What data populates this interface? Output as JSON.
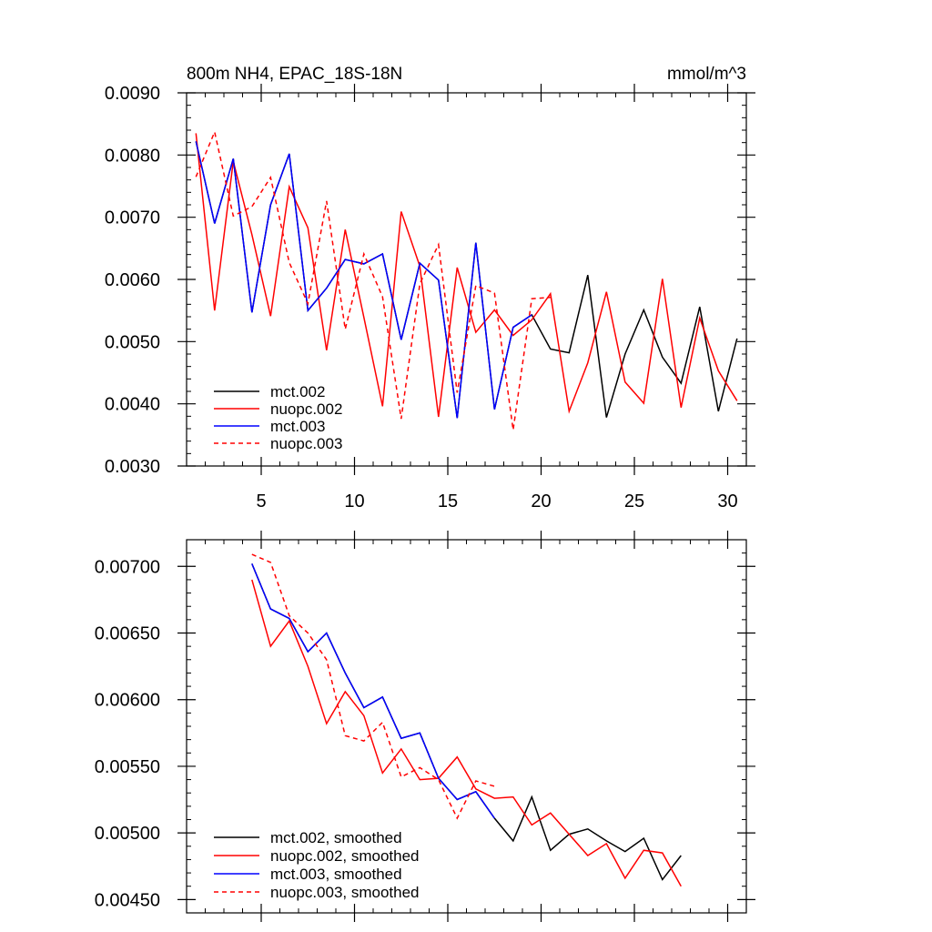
{
  "chart_data": [
    {
      "type": "line",
      "title": "800m NH4, EPAC_18S-18N",
      "units": "mmol/m^3",
      "xlim": [
        1,
        31
      ],
      "ylim": [
        0.003,
        0.009
      ],
      "xticks": [
        5,
        10,
        15,
        20,
        25,
        30
      ],
      "xtick_labels": [
        "5",
        "10",
        "15",
        "20",
        "25",
        "30"
      ],
      "yticks": [
        0.003,
        0.004,
        0.005,
        0.006,
        0.007,
        0.008,
        0.009
      ],
      "ytick_labels": [
        "0.0030",
        "0.0040",
        "0.0050",
        "0.0060",
        "0.0070",
        "0.0080",
        "0.0090"
      ],
      "legend_position": "bottom-left",
      "series": [
        {
          "name": "mct.002",
          "color": "#000000",
          "dash": "solid",
          "x": [
            1.5,
            2.5,
            3.5,
            4.5,
            5.5,
            6.5,
            7.5,
            8.5,
            9.5,
            10.5,
            11.5,
            12.5,
            13.5,
            14.5,
            15.5,
            16.5,
            17.5,
            18.5,
            19.5,
            20.5,
            21.5,
            22.5,
            23.5,
            24.5,
            25.5,
            26.5,
            27.5,
            28.5,
            29.5,
            30.5
          ],
          "y": [
            0.00822,
            0.0069,
            0.00794,
            0.00547,
            0.0072,
            0.00802,
            0.0055,
            0.00586,
            0.00632,
            0.00625,
            0.00641,
            0.00503,
            0.00626,
            0.00599,
            0.00377,
            0.00659,
            0.00391,
            0.00523,
            0.00543,
            0.00488,
            0.00482,
            0.00607,
            0.00378,
            0.0048,
            0.00551,
            0.00475,
            0.00433,
            0.00556,
            0.00388,
            0.00505
          ]
        },
        {
          "name": "nuopc.002",
          "color": "#ff0000",
          "dash": "solid",
          "x": [
            1.5,
            2.5,
            3.5,
            4.5,
            5.5,
            6.5,
            7.5,
            8.5,
            9.5,
            10.5,
            11.5,
            12.5,
            13.5,
            14.5,
            15.5,
            16.5,
            17.5,
            18.5,
            19.5,
            20.5,
            21.5,
            22.5,
            23.5,
            24.5,
            25.5,
            26.5,
            27.5,
            28.5,
            29.5,
            30.5
          ],
          "y": [
            0.00835,
            0.0055,
            0.0079,
            0.00672,
            0.00541,
            0.00749,
            0.00683,
            0.00486,
            0.0068,
            0.00539,
            0.00396,
            0.00709,
            0.00621,
            0.00379,
            0.00619,
            0.00515,
            0.00551,
            0.0051,
            0.00535,
            0.00577,
            0.00388,
            0.00466,
            0.0058,
            0.00435,
            0.00401,
            0.00601,
            0.00394,
            0.00538,
            0.00453,
            0.00405
          ]
        },
        {
          "name": "mct.003",
          "color": "#0000ff",
          "dash": "solid",
          "x": [
            1.5,
            2.5,
            3.5,
            4.5,
            5.5,
            6.5,
            7.5,
            8.5,
            9.5,
            10.5,
            11.5,
            12.5,
            13.5,
            14.5,
            15.5,
            16.5,
            17.5,
            18.5,
            19.5
          ],
          "y": [
            0.00822,
            0.0069,
            0.00794,
            0.00547,
            0.0072,
            0.00802,
            0.0055,
            0.00586,
            0.00632,
            0.00625,
            0.00641,
            0.00503,
            0.00626,
            0.00599,
            0.00377,
            0.00659,
            0.00391,
            0.00523,
            0.00543
          ]
        },
        {
          "name": "nuopc.003",
          "color": "#ff0000",
          "dash": "dashed",
          "x": [
            1.5,
            2.5,
            3.5,
            4.5,
            5.5,
            6.5,
            7.5,
            8.5,
            9.5,
            10.5,
            11.5,
            12.5,
            13.5,
            14.5,
            15.5,
            16.5,
            17.5,
            18.5,
            19.5,
            20.5
          ],
          "y": [
            0.00765,
            0.00837,
            0.00702,
            0.00717,
            0.00764,
            0.00627,
            0.00561,
            0.00726,
            0.0052,
            0.00641,
            0.00572,
            0.00376,
            0.00593,
            0.00656,
            0.00418,
            0.0059,
            0.00578,
            0.00358,
            0.00569,
            0.00571
          ]
        }
      ]
    },
    {
      "type": "line",
      "title": "",
      "xlim": [
        1,
        31
      ],
      "ylim": [
        0.0044,
        0.0072
      ],
      "xticks": [
        5,
        10,
        15,
        20,
        25,
        30
      ],
      "xtick_labels": [
        "",
        "",
        "",
        "",
        "",
        ""
      ],
      "yticks": [
        0.0045,
        0.005,
        0.0055,
        0.006,
        0.0065,
        0.007
      ],
      "ytick_labels": [
        "0.00450",
        "0.00500",
        "0.00550",
        "0.00600",
        "0.00650",
        "0.00700"
      ],
      "legend_position": "bottom-left",
      "series": [
        {
          "name": "mct.002, smoothed",
          "color": "#000000",
          "dash": "solid",
          "x": [
            4.5,
            5.5,
            6.5,
            7.5,
            8.5,
            9.5,
            10.5,
            11.5,
            12.5,
            13.5,
            14.5,
            15.5,
            16.5,
            17.5,
            18.5,
            19.5,
            20.5,
            21.5,
            22.5,
            23.5,
            24.5,
            25.5,
            26.5,
            27.5
          ],
          "y": [
            0.00702,
            0.00668,
            0.00661,
            0.00636,
            0.0065,
            0.0062,
            0.00594,
            0.00602,
            0.00571,
            0.00575,
            0.00541,
            0.00525,
            0.00531,
            0.00511,
            0.00494,
            0.00527,
            0.00487,
            0.00499,
            0.00503,
            0.00494,
            0.00486,
            0.00496,
            0.00465,
            0.00483
          ]
        },
        {
          "name": "nuopc.002, smoothed",
          "color": "#ff0000",
          "dash": "solid",
          "x": [
            4.5,
            5.5,
            6.5,
            7.5,
            8.5,
            9.5,
            10.5,
            11.5,
            12.5,
            13.5,
            14.5,
            15.5,
            16.5,
            17.5,
            18.5,
            19.5,
            20.5,
            21.5,
            22.5,
            23.5,
            24.5,
            25.5,
            26.5,
            27.5
          ],
          "y": [
            0.0069,
            0.0064,
            0.00659,
            0.00625,
            0.00582,
            0.00606,
            0.00588,
            0.00545,
            0.00563,
            0.0054,
            0.00541,
            0.00557,
            0.00533,
            0.00526,
            0.00527,
            0.00506,
            0.00515,
            0.00499,
            0.00483,
            0.00492,
            0.00466,
            0.00487,
            0.00485,
            0.0046
          ]
        },
        {
          "name": "mct.003, smoothed",
          "color": "#0000ff",
          "dash": "solid",
          "x": [
            4.5,
            5.5,
            6.5,
            7.5,
            8.5,
            9.5,
            10.5,
            11.5,
            12.5,
            13.5,
            14.5,
            15.5,
            16.5,
            17.5
          ],
          "y": [
            0.00702,
            0.00668,
            0.00661,
            0.00636,
            0.0065,
            0.0062,
            0.00594,
            0.00602,
            0.00571,
            0.00575,
            0.00541,
            0.00525,
            0.00531,
            0.00511
          ]
        },
        {
          "name": "nuopc.003, smoothed",
          "color": "#ff0000",
          "dash": "dashed",
          "x": [
            4.5,
            5.5,
            6.5,
            7.5,
            8.5,
            9.5,
            10.5,
            11.5,
            12.5,
            13.5,
            14.5,
            15.5,
            16.5,
            17.5
          ],
          "y": [
            0.00709,
            0.00703,
            0.00663,
            0.0065,
            0.0063,
            0.00573,
            0.00569,
            0.00583,
            0.00542,
            0.00549,
            0.0054,
            0.00511,
            0.00539,
            0.00535
          ]
        }
      ]
    }
  ]
}
